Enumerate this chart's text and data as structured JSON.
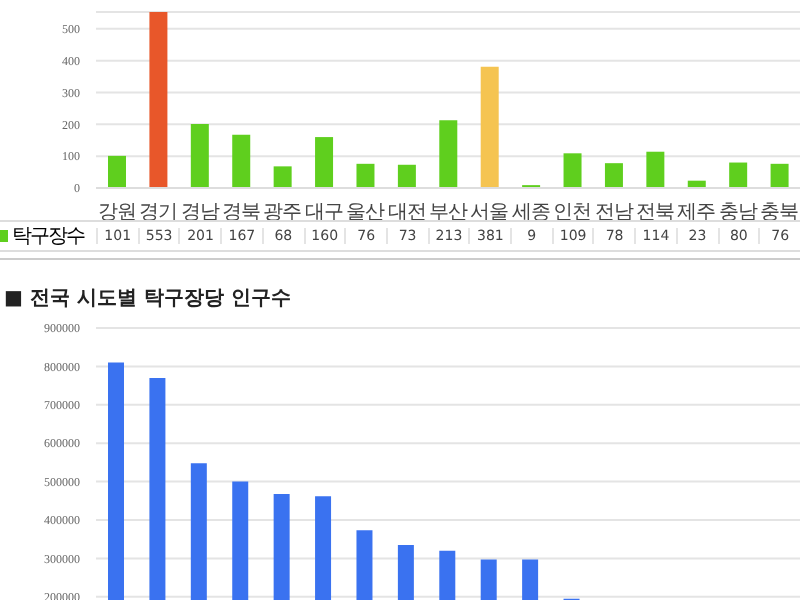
{
  "chart_data": [
    {
      "type": "bar",
      "categories": [
        "강원",
        "경기",
        "경남",
        "경북",
        "광주",
        "대구",
        "울산",
        "대전",
        "부산",
        "서울",
        "세종",
        "인천",
        "전남",
        "전북",
        "제주",
        "충남",
        "충북"
      ],
      "series": [
        {
          "name": "탁구장수",
          "color": "#5fcf1e",
          "colors": [
            "#5fcf1e",
            "#e8572a",
            "#5fcf1e",
            "#5fcf1e",
            "#5fcf1e",
            "#5fcf1e",
            "#5fcf1e",
            "#5fcf1e",
            "#5fcf1e",
            "#f5c451",
            "#5fcf1e",
            "#5fcf1e",
            "#5fcf1e",
            "#5fcf1e",
            "#5fcf1e",
            "#5fcf1e",
            "#5fcf1e"
          ],
          "values": [
            101,
            553,
            201,
            167,
            68,
            160,
            76,
            73,
            213,
            381,
            9,
            109,
            78,
            114,
            23,
            80,
            76
          ]
        }
      ],
      "ylim": [
        0,
        553
      ],
      "yticks": [
        0,
        100,
        200,
        300,
        400,
        500
      ],
      "grid": "y",
      "legend": "bottom left",
      "data_labels": true
    },
    {
      "type": "bar",
      "title": "■ 전국 시도별 탁구장당 인구수",
      "categories": [
        null,
        null,
        null,
        null,
        null,
        null,
        null,
        null,
        null,
        null,
        null,
        null,
        null,
        null,
        null,
        null,
        null
      ],
      "series": [
        {
          "color": "#3a72f0",
          "values": [
            810000,
            770000,
            548000,
            500000,
            468000,
            462000,
            373000,
            335000,
            320000,
            297000,
            297000,
            195000,
            null,
            null,
            null,
            null,
            null
          ]
        }
      ],
      "ylim": [
        150000,
        900000
      ],
      "yticks": [
        200000,
        300000,
        400000,
        500000,
        600000,
        700000,
        800000,
        900000
      ],
      "grid": "y",
      "tick_labels": "y"
    }
  ]
}
